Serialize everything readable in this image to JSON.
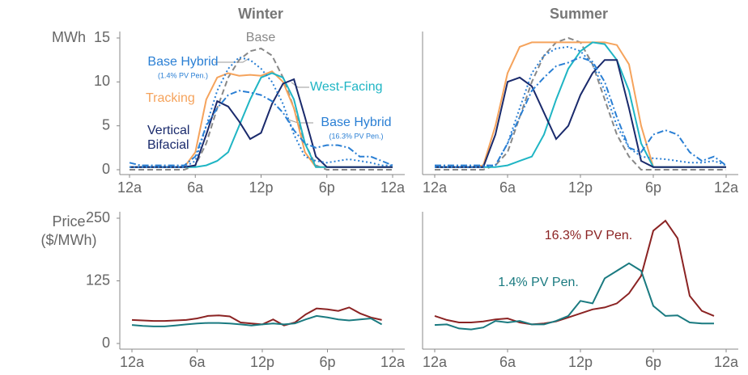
{
  "chart_data": [
    {
      "type": "line",
      "title": "Winter",
      "ylabel": [
        "MWh"
      ],
      "x": [
        0,
        1,
        2,
        3,
        4,
        5,
        6,
        7,
        8,
        9,
        10,
        11,
        12,
        13,
        14,
        15,
        16,
        17,
        18,
        19,
        20,
        21,
        22,
        23,
        24
      ],
      "xlim": [
        0,
        24
      ],
      "xticks": [
        {
          "value": 0,
          "label": "12a"
        },
        {
          "value": 6,
          "label": "6a"
        },
        {
          "value": 12,
          "label": "12p"
        },
        {
          "value": 18,
          "label": "6p"
        },
        {
          "value": 24,
          "label": "12a"
        }
      ],
      "ylim": [
        0,
        15
      ],
      "yticks": [
        0,
        5,
        10,
        15
      ],
      "series": [
        {
          "name": "Base",
          "color": "#888888",
          "style": "dashed",
          "values": [
            0,
            0,
            0,
            0,
            0,
            0,
            0.5,
            3,
            7,
            10.5,
            12.5,
            13.5,
            13.8,
            13,
            10.5,
            7,
            3,
            0.5,
            0,
            0,
            0,
            0,
            0,
            0,
            0
          ]
        },
        {
          "name": "Tracking",
          "color": "#f5a35c",
          "style": "solid",
          "values": [
            0.3,
            0.3,
            0.3,
            0.3,
            0.3,
            0.3,
            2,
            8,
            10.5,
            11,
            10.7,
            10.8,
            10.7,
            11.2,
            10,
            7,
            2,
            0.3,
            0.3,
            0.3,
            0.3,
            0.3,
            0.3,
            0.3,
            0.3
          ]
        },
        {
          "name": "West-Facing",
          "color": "#1fb5c4",
          "style": "solid",
          "values": [
            0.3,
            0.3,
            0.3,
            0.3,
            0.3,
            0.3,
            0.3,
            0.5,
            1,
            2,
            5,
            8,
            10.5,
            11,
            10.5,
            8,
            3,
            0.3,
            0.3,
            0.3,
            0.3,
            0.3,
            0.3,
            0.3,
            0.3
          ]
        },
        {
          "name": "Vertical Bifacial",
          "color": "#1a2a6c",
          "style": "solid",
          "values": [
            0.3,
            0.3,
            0.3,
            0.3,
            0.3,
            0.3,
            0.5,
            4,
            7.8,
            7.2,
            5.5,
            3.5,
            4.2,
            7.5,
            9.8,
            10.3,
            6,
            1.5,
            0.3,
            0.3,
            0.3,
            0.3,
            0.3,
            0.3,
            0.3
          ]
        },
        {
          "name": "Base Hybrid",
          "subname": "(1.4% PV Pen.)",
          "color": "#2a7fd4",
          "style": "dotted",
          "values": [
            0.3,
            0.3,
            0.3,
            0.3,
            0.3,
            0.3,
            1,
            5,
            9,
            11.5,
            12.8,
            12.5,
            11.5,
            10,
            7.5,
            4,
            1.5,
            1,
            0.8,
            1,
            1.2,
            1,
            0.8,
            0.5,
            0.5
          ]
        },
        {
          "name": "Base Hybrid",
          "subname": "(16.3% PV Pen.)",
          "color": "#2a7fd4",
          "style": "dashdot",
          "values": [
            0.8,
            0.5,
            0.5,
            0.5,
            0.5,
            0.5,
            1.5,
            5,
            7,
            8.5,
            9,
            8.8,
            8.5,
            7.8,
            6.5,
            4.5,
            3,
            2.5,
            2.8,
            2.8,
            2.5,
            1.5,
            1.5,
            1,
            0.5
          ]
        }
      ]
    },
    {
      "type": "line",
      "title": "Summer",
      "x": [
        0,
        1,
        2,
        3,
        4,
        5,
        6,
        7,
        8,
        9,
        10,
        11,
        12,
        13,
        14,
        15,
        16,
        17,
        18,
        19,
        20,
        21,
        22,
        23,
        24
      ],
      "xlim": [
        0,
        24
      ],
      "xticks": [
        {
          "value": 0,
          "label": "12a"
        },
        {
          "value": 6,
          "label": "6a"
        },
        {
          "value": 12,
          "label": "12p"
        },
        {
          "value": 18,
          "label": "6p"
        },
        {
          "value": 24,
          "label": "12a"
        }
      ],
      "ylim": [
        0,
        15
      ],
      "series": [
        {
          "color": "#888888",
          "style": "dashed",
          "values": [
            0,
            0,
            0,
            0,
            0,
            0.5,
            2,
            6,
            10,
            13,
            14.5,
            15,
            14.5,
            12,
            8,
            4,
            1.5,
            0,
            0,
            0,
            0,
            0,
            0,
            0,
            0
          ]
        },
        {
          "color": "#f5a35c",
          "style": "solid",
          "values": [
            0.3,
            0.3,
            0.3,
            0.3,
            0.5,
            5,
            11,
            14,
            14.5,
            14.5,
            14.5,
            14.5,
            14.5,
            14.5,
            14.5,
            14.2,
            12,
            5,
            0.3,
            0.3,
            0.3,
            0.3,
            0.3,
            0.3,
            0.3
          ]
        },
        {
          "color": "#1fb5c4",
          "style": "solid",
          "values": [
            0.3,
            0.3,
            0.3,
            0.3,
            0.3,
            0.3,
            0.5,
            1,
            1.5,
            4,
            8,
            11.5,
            13.5,
            14.5,
            14.3,
            12.5,
            9,
            3,
            0.3,
            0.3,
            0.3,
            0.3,
            0.3,
            0.3,
            0.3
          ]
        },
        {
          "color": "#1a2a6c",
          "style": "solid",
          "values": [
            0.3,
            0.3,
            0.3,
            0.3,
            0.3,
            4,
            10,
            10.5,
            9.5,
            6.5,
            3.5,
            5,
            8.5,
            11,
            12.5,
            12.5,
            7,
            1,
            0.3,
            0.3,
            0.3,
            0.3,
            0.3,
            0.3,
            0.3
          ]
        },
        {
          "color": "#2a7fd4",
          "style": "dotted",
          "values": [
            0.3,
            0.3,
            0.3,
            0.3,
            0.3,
            0.5,
            3,
            7,
            11,
            13,
            13.8,
            14,
            13.5,
            12,
            9,
            5,
            2.5,
            1.5,
            1.3,
            1.2,
            1,
            0.8,
            0.8,
            1,
            0.5
          ]
        },
        {
          "color": "#2a7fd4",
          "style": "dashdot",
          "values": [
            0.5,
            0.5,
            0.5,
            0.5,
            0.5,
            0.5,
            3,
            6,
            9,
            10.5,
            11.8,
            12.2,
            12.8,
            12.3,
            10,
            6,
            2.5,
            2,
            4,
            4.5,
            4,
            2,
            1,
            1.5,
            0.5
          ]
        }
      ]
    },
    {
      "type": "line",
      "ylabel": [
        "Price",
        "($/MWh)"
      ],
      "x": [
        0,
        1,
        2,
        3,
        4,
        5,
        6,
        7,
        8,
        9,
        10,
        11,
        12,
        13,
        14,
        15,
        16,
        17,
        18,
        19,
        20,
        21,
        22,
        23
      ],
      "xlim": [
        0,
        24
      ],
      "xticks": [
        {
          "value": 0,
          "label": "12a"
        },
        {
          "value": 6,
          "label": "6a"
        },
        {
          "value": 12,
          "label": "12p"
        },
        {
          "value": 18,
          "label": "6p"
        },
        {
          "value": 24,
          "label": "12a"
        }
      ],
      "ylim": [
        0,
        250
      ],
      "yticks": [
        0,
        125,
        250
      ],
      "series": [
        {
          "color": "#8b2323",
          "style": "solid",
          "values": [
            47,
            46,
            45,
            45,
            46,
            47,
            50,
            55,
            56,
            54,
            42,
            40,
            38,
            48,
            36,
            42,
            58,
            70,
            68,
            65,
            72,
            60,
            52,
            47
          ]
        },
        {
          "color": "#1a7a80",
          "style": "solid",
          "values": [
            37,
            35,
            34,
            34,
            36,
            38,
            40,
            41,
            41,
            40,
            38,
            36,
            38,
            40,
            38,
            40,
            48,
            55,
            52,
            48,
            46,
            48,
            50,
            38
          ]
        }
      ]
    },
    {
      "type": "line",
      "x": [
        0,
        1,
        2,
        3,
        4,
        5,
        6,
        7,
        8,
        9,
        10,
        11,
        12,
        13,
        14,
        15,
        16,
        17,
        18,
        19,
        20,
        21,
        22,
        23
      ],
      "xlim": [
        0,
        24
      ],
      "xticks": [
        {
          "value": 0,
          "label": "12a"
        },
        {
          "value": 6,
          "label": "6a"
        },
        {
          "value": 12,
          "label": "12p"
        },
        {
          "value": 18,
          "label": "6p"
        },
        {
          "value": 24,
          "label": "12a"
        }
      ],
      "ylim": [
        0,
        250
      ],
      "series": [
        {
          "name": "16.3% PV Pen.",
          "color": "#8b2323",
          "style": "solid",
          "values": [
            55,
            47,
            42,
            42,
            44,
            48,
            50,
            42,
            38,
            40,
            44,
            52,
            60,
            68,
            72,
            80,
            100,
            135,
            225,
            245,
            210,
            95,
            65,
            55
          ]
        },
        {
          "name": "1.4% PV Pen.",
          "color": "#1a7a80",
          "style": "solid",
          "values": [
            37,
            38,
            30,
            28,
            32,
            45,
            42,
            45,
            38,
            38,
            45,
            55,
            85,
            80,
            130,
            145,
            160,
            145,
            75,
            55,
            56,
            42,
            40,
            40
          ]
        }
      ]
    }
  ]
}
